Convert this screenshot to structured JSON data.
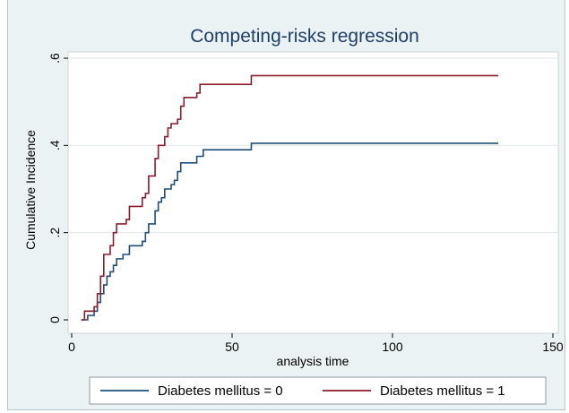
{
  "chart_data": {
    "type": "line",
    "step": true,
    "title": "Competing-risks regression",
    "xlabel": "analysis time",
    "ylabel": "Cumulative Incidence",
    "xlim": [
      0,
      150
    ],
    "ylim": [
      0,
      0.6
    ],
    "xticks": [
      0,
      50,
      100,
      150
    ],
    "xtick_labels": [
      "0",
      "50",
      "100",
      "150"
    ],
    "yticks": [
      0,
      0.2,
      0.4,
      0.6
    ],
    "ytick_labels": [
      "0",
      ".2",
      ".4",
      ".6"
    ],
    "grid": "horizontal",
    "legend_position": "bottom",
    "colors": {
      "background": "#eaf2f3",
      "plot": "#ffffff",
      "title": "#1f3f6a",
      "grid": "#dfe7e9"
    },
    "series": [
      {
        "name": "Diabetes  mellitus = 0",
        "color": "#1f4e79",
        "points": [
          [
            3,
            0
          ],
          [
            5,
            0
          ],
          [
            5,
            0.01
          ],
          [
            7,
            0.01
          ],
          [
            7,
            0.02
          ],
          [
            8,
            0.02
          ],
          [
            8,
            0.04
          ],
          [
            9,
            0.04
          ],
          [
            9,
            0.06
          ],
          [
            10,
            0.06
          ],
          [
            10,
            0.08
          ],
          [
            11,
            0.08
          ],
          [
            11,
            0.1
          ],
          [
            12,
            0.1
          ],
          [
            12,
            0.11
          ],
          [
            13,
            0.11
          ],
          [
            13,
            0.125
          ],
          [
            14,
            0.125
          ],
          [
            14,
            0.14
          ],
          [
            16,
            0.14
          ],
          [
            16,
            0.15
          ],
          [
            18,
            0.15
          ],
          [
            18,
            0.17
          ],
          [
            22,
            0.17
          ],
          [
            22,
            0.18
          ],
          [
            23,
            0.18
          ],
          [
            23,
            0.2
          ],
          [
            24,
            0.2
          ],
          [
            24,
            0.22
          ],
          [
            26,
            0.22
          ],
          [
            26,
            0.25
          ],
          [
            27,
            0.25
          ],
          [
            27,
            0.27
          ],
          [
            28,
            0.27
          ],
          [
            28,
            0.28
          ],
          [
            29,
            0.28
          ],
          [
            29,
            0.3
          ],
          [
            31,
            0.3
          ],
          [
            31,
            0.31
          ],
          [
            32,
            0.31
          ],
          [
            32,
            0.32
          ],
          [
            33,
            0.32
          ],
          [
            33,
            0.34
          ],
          [
            34,
            0.34
          ],
          [
            34,
            0.36
          ],
          [
            39,
            0.36
          ],
          [
            39,
            0.375
          ],
          [
            41,
            0.375
          ],
          [
            41,
            0.39
          ],
          [
            56,
            0.39
          ],
          [
            56,
            0.405
          ],
          [
            133,
            0.405
          ]
        ]
      },
      {
        "name": "Diabetes  mellitus = 1",
        "color": "#8b1c2b",
        "points": [
          [
            3,
            0
          ],
          [
            4,
            0
          ],
          [
            4,
            0.02
          ],
          [
            7,
            0.02
          ],
          [
            7,
            0.03
          ],
          [
            8,
            0.03
          ],
          [
            8,
            0.06
          ],
          [
            9,
            0.06
          ],
          [
            9,
            0.1
          ],
          [
            10,
            0.1
          ],
          [
            10,
            0.15
          ],
          [
            12,
            0.15
          ],
          [
            12,
            0.17
          ],
          [
            13,
            0.17
          ],
          [
            13,
            0.2
          ],
          [
            14,
            0.2
          ],
          [
            14,
            0.22
          ],
          [
            17,
            0.22
          ],
          [
            17,
            0.23
          ],
          [
            18,
            0.23
          ],
          [
            18,
            0.26
          ],
          [
            22,
            0.26
          ],
          [
            22,
            0.28
          ],
          [
            23,
            0.28
          ],
          [
            23,
            0.29
          ],
          [
            24,
            0.29
          ],
          [
            24,
            0.33
          ],
          [
            26,
            0.33
          ],
          [
            26,
            0.37
          ],
          [
            27,
            0.37
          ],
          [
            27,
            0.4
          ],
          [
            29,
            0.4
          ],
          [
            29,
            0.42
          ],
          [
            30,
            0.42
          ],
          [
            30,
            0.44
          ],
          [
            31,
            0.44
          ],
          [
            31,
            0.45
          ],
          [
            33,
            0.45
          ],
          [
            33,
            0.46
          ],
          [
            34,
            0.46
          ],
          [
            34,
            0.49
          ],
          [
            35,
            0.49
          ],
          [
            35,
            0.51
          ],
          [
            39,
            0.51
          ],
          [
            39,
            0.52
          ],
          [
            40,
            0.52
          ],
          [
            40,
            0.54
          ],
          [
            56,
            0.54
          ],
          [
            56,
            0.56
          ],
          [
            133,
            0.56
          ]
        ]
      }
    ]
  }
}
